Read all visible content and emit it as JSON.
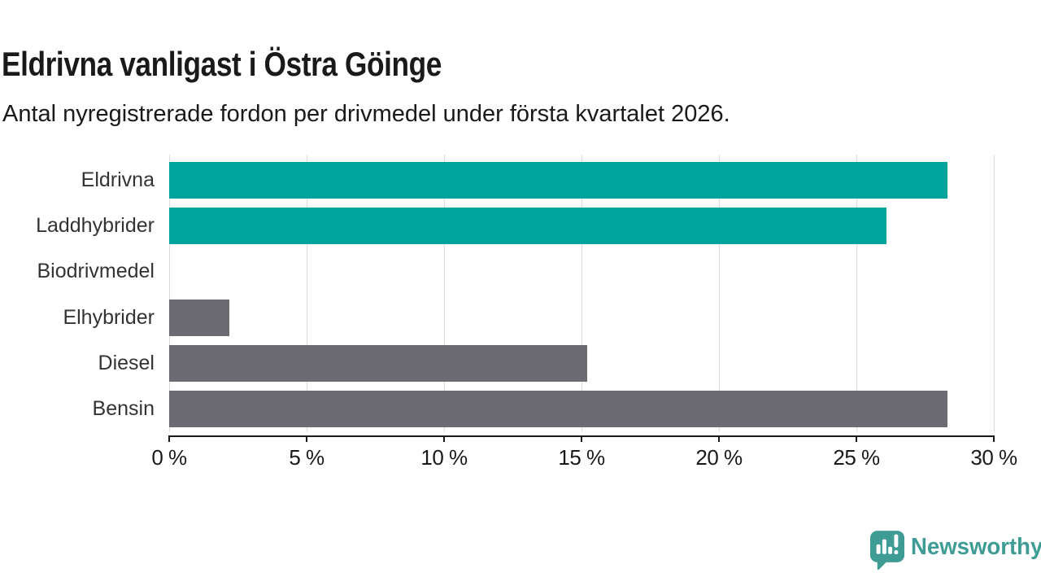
{
  "header": {
    "title": "Eldrivna vanligast i Östra Göinge",
    "subtitle": "Antal nyregistrerade fordon per drivmedel under första kvartalet 2026."
  },
  "chart_data": {
    "type": "bar",
    "orientation": "horizontal",
    "categories": [
      "Eldrivna",
      "Laddhybrider",
      "Biodrivmedel",
      "Elhybrider",
      "Diesel",
      "Bensin"
    ],
    "values": [
      28.3,
      26.1,
      0,
      2.2,
      15.2,
      28.3
    ],
    "unit": "%",
    "bar_colors": [
      "#00a49a",
      "#00a49a",
      "#00a49a",
      "#6c6b72",
      "#6c6b72",
      "#6c6b72"
    ],
    "title": "Eldrivna vanligast i Östra Göinge",
    "subtitle": "Antal nyregistrerade fordon per drivmedel under första kvartalet 2026.",
    "xlabel": "",
    "ylabel": "",
    "xlim": [
      0,
      30
    ],
    "x_ticks": [
      0,
      5,
      10,
      15,
      20,
      25,
      30
    ],
    "x_tick_labels": [
      "0 %",
      "5 %",
      "10 %",
      "15 %",
      "20 %",
      "25 %",
      "30 %"
    ],
    "grid": "vertical",
    "legend": "none"
  },
  "colors": {
    "bar_electric": "#00a49a",
    "bar_other": "#6c6b72",
    "gridline": "#dcdcdc",
    "axis": "#1a1a1a",
    "category_label": "#333333",
    "logo": "#3e9c95",
    "background": "#ffffff"
  },
  "footer": {
    "logo_text": "Newsworthy",
    "logo_icon": "newsworthy-speech-bubble-chart-icon"
  }
}
